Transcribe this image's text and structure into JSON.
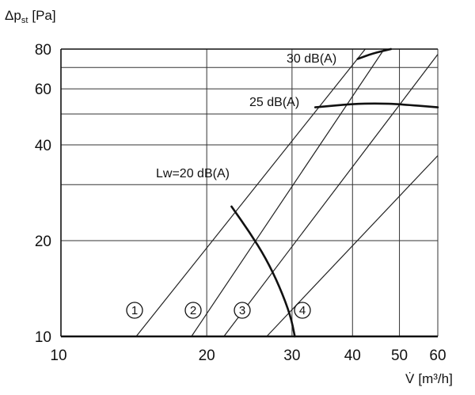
{
  "chart_data": {
    "type": "line",
    "xlabel_main": "V̇",
    "xlabel_unit": "[m³/h]",
    "ylabel_main": "Δp",
    "ylabel_sub": "st",
    "ylabel_unit": "[Pa]",
    "xscale": "log",
    "yscale": "log",
    "xlim": [
      10,
      60
    ],
    "ylim": [
      10,
      80
    ],
    "x_ticks": [
      {
        "value": 10,
        "label": "10"
      },
      {
        "value": 20,
        "label": "20"
      },
      {
        "value": 30,
        "label": "30"
      },
      {
        "value": 40,
        "label": "40"
      },
      {
        "value": 50,
        "label": "50"
      },
      {
        "value": 60,
        "label": "60"
      }
    ],
    "y_ticks": [
      {
        "value": 10,
        "label": "10"
      },
      {
        "value": 20,
        "label": "20"
      },
      {
        "value": 40,
        "label": "40"
      },
      {
        "value": 60,
        "label": "60"
      },
      {
        "value": 80,
        "label": "80"
      }
    ],
    "y_minor_grid": [
      30,
      50,
      70
    ],
    "grid": true,
    "characteristic_lines": [
      {
        "id": "1",
        "label": "①",
        "points": [
          [
            14.3,
            10
          ],
          [
            42.5,
            80
          ]
        ]
      },
      {
        "id": "2",
        "label": "②",
        "points": [
          [
            18.6,
            10
          ],
          [
            46.5,
            80
          ]
        ]
      },
      {
        "id": "3",
        "label": "③",
        "points": [
          [
            21.7,
            10
          ],
          [
            60,
            77
          ]
        ]
      },
      {
        "id": "4",
        "label": "④",
        "points": [
          [
            26.6,
            10
          ],
          [
            60,
            37
          ]
        ]
      }
    ],
    "sound_curves": [
      {
        "label": "Lw=20 dB(A)",
        "points": [
          [
            22.5,
            25.6
          ],
          [
            24.5,
            21.3
          ],
          [
            26.5,
            17.6
          ],
          [
            28.3,
            14.3
          ],
          [
            29.8,
            11.6
          ],
          [
            30.4,
            10
          ]
        ]
      },
      {
        "label": "25 dB(A)",
        "points": [
          [
            33.5,
            52.5
          ],
          [
            40,
            53.8
          ],
          [
            45,
            54
          ],
          [
            50,
            53.7
          ],
          [
            60,
            52.5
          ]
        ]
      },
      {
        "label": "30 dB(A)",
        "points": [
          [
            41,
            74.5
          ],
          [
            44,
            77.5
          ],
          [
            48,
            80
          ]
        ]
      }
    ]
  }
}
